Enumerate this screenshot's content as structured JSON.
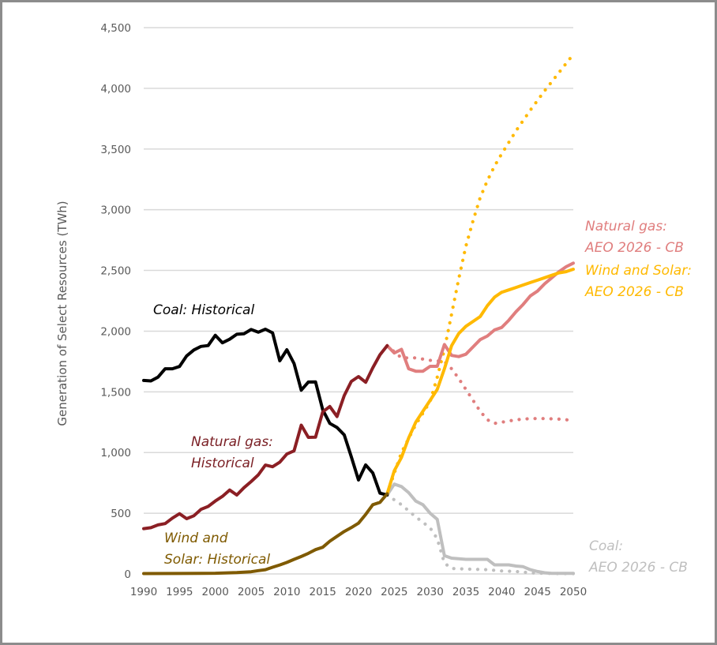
{
  "chart_data": {
    "type": "line",
    "title": "",
    "xlabel": "",
    "ylabel": "Generation of Select Resources (TWh)",
    "xlim": [
      1990,
      2050
    ],
    "ylim": [
      0,
      4500
    ],
    "grid": true,
    "x_ticks": [
      "1990",
      "1995",
      "2000",
      "2005",
      "2010",
      "2015",
      "2020",
      "2025",
      "2030",
      "2035",
      "2040",
      "2045",
      "2050"
    ],
    "y_ticks": [
      "0",
      "500",
      "1,000",
      "1,500",
      "2,000",
      "2,500",
      "3,000",
      "3,500",
      "4,000",
      "4,500"
    ],
    "y_tick_values": [
      0,
      500,
      1000,
      1500,
      2000,
      2500,
      3000,
      3500,
      4000,
      4500
    ],
    "x_tick_values": [
      1990,
      1995,
      2000,
      2005,
      2010,
      2015,
      2020,
      2025,
      2030,
      2035,
      2040,
      2045,
      2050
    ],
    "series": [
      {
        "name": "Coal: Historical",
        "color": "#000000",
        "style": "solid",
        "x": [
          1990,
          1991,
          1992,
          1993,
          1994,
          1995,
          1996,
          1997,
          1998,
          1999,
          2000,
          2001,
          2002,
          2003,
          2004,
          2005,
          2006,
          2007,
          2008,
          2009,
          2010,
          2011,
          2012,
          2013,
          2014,
          2015,
          2016,
          2017,
          2018,
          2019,
          2020,
          2021,
          2022,
          2023,
          2024
        ],
        "values": [
          1594,
          1590,
          1621,
          1690,
          1690,
          1709,
          1796,
          1845,
          1874,
          1881,
          1966,
          1904,
          1933,
          1974,
          1978,
          2013,
          1991,
          2016,
          1986,
          1756,
          1847,
          1733,
          1514,
          1581,
          1582,
          1352,
          1240,
          1206,
          1146,
          965,
          774,
          898,
          832,
          665,
          650
        ]
      },
      {
        "name": "Natural gas: Historical",
        "color": "#8b1f24",
        "style": "solid",
        "x": [
          1990,
          1991,
          1992,
          1993,
          1994,
          1995,
          1996,
          1997,
          1998,
          1999,
          2000,
          2001,
          2002,
          2003,
          2004,
          2005,
          2006,
          2007,
          2008,
          2009,
          2010,
          2011,
          2012,
          2013,
          2014,
          2015,
          2016,
          2017,
          2018,
          2019,
          2020,
          2021,
          2022,
          2023,
          2024
        ],
        "values": [
          373,
          381,
          404,
          415,
          460,
          496,
          455,
          479,
          532,
          556,
          601,
          639,
          691,
          650,
          710,
          761,
          816,
          897,
          883,
          921,
          988,
          1014,
          1226,
          1125,
          1127,
          1335,
          1379,
          1297,
          1469,
          1586,
          1626,
          1579,
          1698,
          1805,
          1880
        ]
      },
      {
        "name": "Wind and Solar: Historical",
        "color": "#7f5a00",
        "style": "solid",
        "x": [
          1990,
          1995,
          2000,
          2003,
          2005,
          2006,
          2007,
          2008,
          2009,
          2010,
          2011,
          2012,
          2013,
          2014,
          2015,
          2016,
          2017,
          2018,
          2019,
          2020,
          2021,
          2022,
          2023,
          2024
        ],
        "values": [
          3,
          4,
          6,
          12,
          18,
          27,
          35,
          55,
          74,
          95,
          120,
          144,
          170,
          200,
          220,
          270,
          310,
          350,
          382,
          418,
          490,
          570,
          590,
          660
        ]
      },
      {
        "name": "Natural gas: AEO 2026 - CB",
        "color": "#e07e7e",
        "style": "solid",
        "x": [
          2024,
          2025,
          2026,
          2027,
          2028,
          2029,
          2030,
          2031,
          2032,
          2033,
          2034,
          2035,
          2036,
          2037,
          2038,
          2039,
          2040,
          2041,
          2042,
          2043,
          2044,
          2045,
          2046,
          2047,
          2048,
          2049,
          2050
        ],
        "values": [
          1880,
          1820,
          1850,
          1690,
          1670,
          1670,
          1710,
          1710,
          1890,
          1800,
          1790,
          1810,
          1870,
          1930,
          1960,
          2010,
          2030,
          2090,
          2160,
          2220,
          2290,
          2330,
          2390,
          2440,
          2490,
          2530,
          2560
        ]
      },
      {
        "name": "Natural gas: AEO 2026 - CB (dotted)",
        "color": "#e07e7e",
        "style": "dotted",
        "x": [
          2024,
          2026,
          2028,
          2030,
          2032,
          2033,
          2034,
          2035,
          2036,
          2037,
          2038,
          2039,
          2040,
          2042,
          2044,
          2046,
          2048,
          2050
        ],
        "values": [
          1880,
          1780,
          1780,
          1760,
          1750,
          1690,
          1610,
          1520,
          1430,
          1340,
          1270,
          1240,
          1250,
          1270,
          1280,
          1280,
          1275,
          1265
        ]
      },
      {
        "name": "Wind and Solar: AEO 2026 - CB",
        "color": "#ffb900",
        "style": "solid",
        "x": [
          2024,
          2025,
          2026,
          2027,
          2028,
          2029,
          2030,
          2031,
          2032,
          2033,
          2034,
          2035,
          2036,
          2037,
          2038,
          2039,
          2040,
          2041,
          2042,
          2043,
          2044,
          2045,
          2046,
          2047,
          2048,
          2049,
          2050
        ],
        "values": [
          660,
          850,
          960,
          1120,
          1250,
          1340,
          1430,
          1520,
          1690,
          1880,
          1980,
          2040,
          2080,
          2120,
          2210,
          2280,
          2320,
          2340,
          2360,
          2380,
          2400,
          2420,
          2440,
          2460,
          2480,
          2490,
          2510
        ]
      },
      {
        "name": "Wind and Solar: AEO 2026 - CB (dotted)",
        "color": "#ffb900",
        "style": "dotted",
        "x": [
          2024,
          2026,
          2028,
          2030,
          2031,
          2032,
          2033,
          2034,
          2035,
          2036,
          2037,
          2038,
          2039,
          2040,
          2042,
          2044,
          2046,
          2048,
          2050
        ],
        "values": [
          660,
          1000,
          1230,
          1420,
          1620,
          1850,
          2140,
          2430,
          2700,
          2910,
          3100,
          3240,
          3360,
          3460,
          3650,
          3820,
          3980,
          4130,
          4280
        ]
      },
      {
        "name": "Coal: AEO 2026 - CB",
        "color": "#bfbfbf",
        "style": "solid",
        "x": [
          2024,
          2025,
          2026,
          2027,
          2028,
          2029,
          2030,
          2031,
          2032,
          2033,
          2034,
          2035,
          2036,
          2037,
          2038,
          2039,
          2040,
          2041,
          2042,
          2043,
          2044,
          2045,
          2046,
          2047,
          2048,
          2049,
          2050
        ],
        "values": [
          650,
          740,
          720,
          670,
          600,
          570,
          500,
          450,
          150,
          130,
          125,
          120,
          120,
          120,
          120,
          75,
          75,
          75,
          65,
          60,
          35,
          20,
          10,
          5,
          5,
          5,
          5
        ]
      },
      {
        "name": "Coal: AEO 2026 - CB (dotted)",
        "color": "#bfbfbf",
        "style": "dotted",
        "x": [
          2024,
          2026,
          2028,
          2030,
          2031,
          2032,
          2033,
          2035,
          2038,
          2040,
          2042,
          2044,
          2046,
          2048,
          2050
        ],
        "values": [
          650,
          570,
          470,
          380,
          290,
          90,
          45,
          40,
          35,
          25,
          20,
          10,
          5,
          3,
          3
        ]
      }
    ],
    "annotations": [
      {
        "lines": [
          "Coal: Historical"
        ],
        "color": "#000000",
        "series": "Coal: Historical"
      },
      {
        "lines": [
          "Natural gas:",
          "Historical"
        ],
        "color": "#7a1f24",
        "series": "Natural gas: Historical"
      },
      {
        "lines": [
          "Wind and",
          "Solar: Historical"
        ],
        "color": "#7f5a00",
        "series": "Wind and Solar: Historical"
      },
      {
        "lines": [
          "Natural gas:",
          "AEO 2026 - CB"
        ],
        "color": "#e07e7e",
        "series": "Natural gas: AEO 2026 - CB"
      },
      {
        "lines": [
          "Wind and Solar:",
          "AEO 2026 - CB"
        ],
        "color": "#ffb900",
        "series": "Wind and Solar: AEO 2026 - CB"
      },
      {
        "lines": [
          "Coal:",
          "AEO 2026 - CB"
        ],
        "color": "#bfbfbf",
        "series": "Coal: AEO 2026 - CB"
      }
    ]
  }
}
